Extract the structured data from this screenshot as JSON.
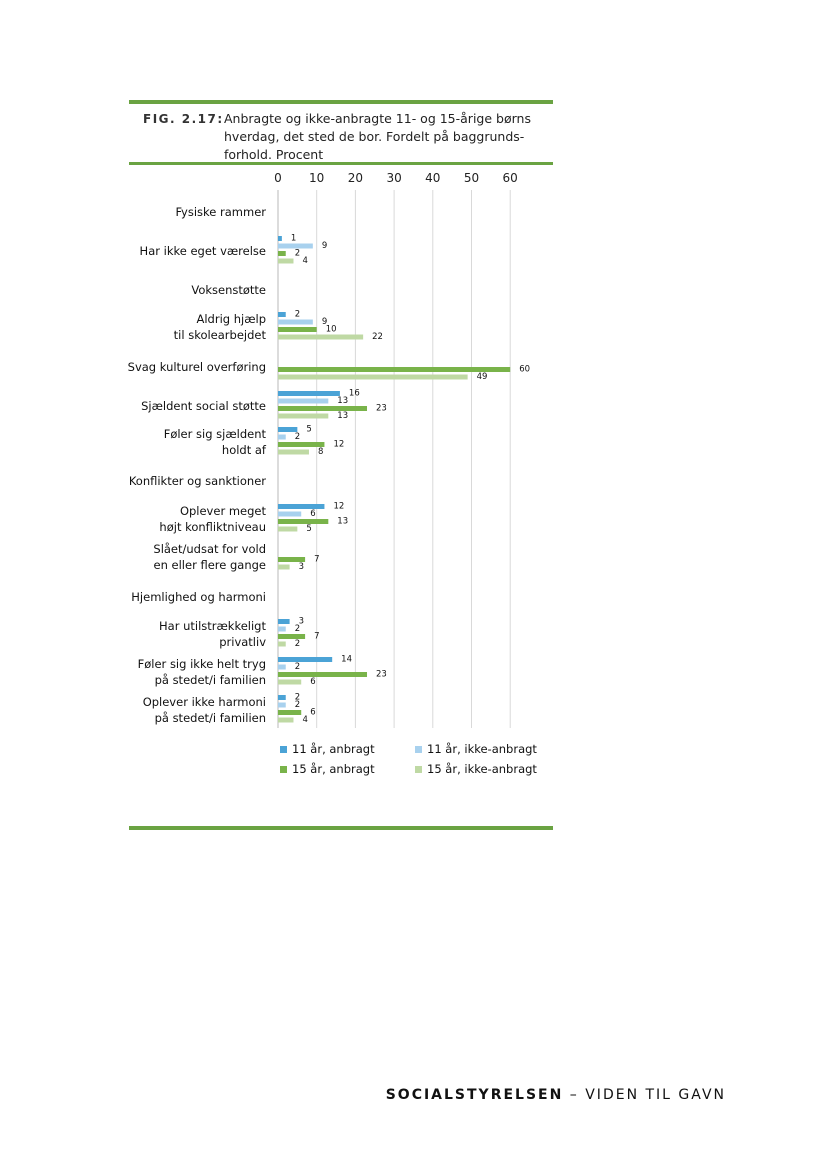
{
  "figure": {
    "label": "FIG. 2.17:",
    "title_lines": [
      "Anbragte og ikke-anbragte 11- og 15-årige børns",
      "hverdag, det sted de bor. Fordelt på baggrunds-",
      "forhold. Procent"
    ]
  },
  "footer": {
    "brand": "SOCIALSTYRELSEN",
    "tagline": "– VIDEN TIL GAVN"
  },
  "colors": {
    "rule_green": "#6aa342",
    "s11_anbragt": "#4ba3d6",
    "s11_ikke": "#a8d1ee",
    "s15_anbragt": "#79b34a",
    "s15_ikke": "#bfd9a4"
  },
  "chart_data": {
    "type": "bar",
    "orientation": "horizontal",
    "xlim": [
      0,
      60
    ],
    "x_ticks": [
      "0",
      "10",
      "20",
      "30",
      "40",
      "50",
      "60"
    ],
    "grid": true,
    "legend_position": "bottom",
    "series": [
      {
        "name": "11 år, anbragt",
        "color": "#4ba3d6"
      },
      {
        "name": "11 år, ikke-anbragt",
        "color": "#a8d1ee"
      },
      {
        "name": "15 år, anbragt",
        "color": "#79b34a"
      },
      {
        "name": "15 år, ikke-anbragt",
        "color": "#bfd9a4"
      }
    ],
    "categories": [
      {
        "lines": [
          "Fysiske rammer"
        ],
        "header": true,
        "values": [
          null,
          null,
          null,
          null
        ]
      },
      {
        "lines": [
          "Har ikke eget værelse"
        ],
        "values": [
          1,
          9,
          2,
          4
        ]
      },
      {
        "lines": [
          "Voksenstøtte"
        ],
        "header": true,
        "values": [
          null,
          null,
          null,
          null
        ]
      },
      {
        "lines": [
          "Aldrig hjælp",
          "til skolearbejdet"
        ],
        "values": [
          2,
          9,
          10,
          22
        ]
      },
      {
        "lines": [
          "Svag  kulturel overføring"
        ],
        "values": [
          null,
          null,
          60,
          49
        ]
      },
      {
        "lines": [
          "Sjældent social støtte"
        ],
        "values": [
          16,
          13,
          23,
          13
        ]
      },
      {
        "lines": [
          "Føler sig sjældent",
          "holdt af"
        ],
        "values": [
          5,
          2,
          12,
          8
        ]
      },
      {
        "lines": [
          "Konflikter og sanktioner"
        ],
        "header": true,
        "values": [
          null,
          null,
          null,
          null
        ]
      },
      {
        "lines": [
          "Oplever meget",
          "højt konfliktniveau"
        ],
        "values": [
          12,
          6,
          13,
          5
        ]
      },
      {
        "lines": [
          "Slået/udsat for vold",
          "en eller flere gange"
        ],
        "values": [
          null,
          null,
          7,
          3
        ]
      },
      {
        "lines": [
          "Hjemlighed og harmoni"
        ],
        "header": true,
        "values": [
          null,
          null,
          null,
          null
        ]
      },
      {
        "lines": [
          "Har utilstrækkeligt",
          "privatliv"
        ],
        "values": [
          3,
          2,
          7,
          2
        ]
      },
      {
        "lines": [
          "Føler sig ikke helt tryg",
          "på stedet/i familien"
        ],
        "values": [
          14,
          2,
          23,
          6
        ]
      },
      {
        "lines": [
          "Oplever ikke harmoni",
          "på stedet/i familien"
        ],
        "values": [
          2,
          2,
          6,
          4
        ]
      }
    ]
  }
}
